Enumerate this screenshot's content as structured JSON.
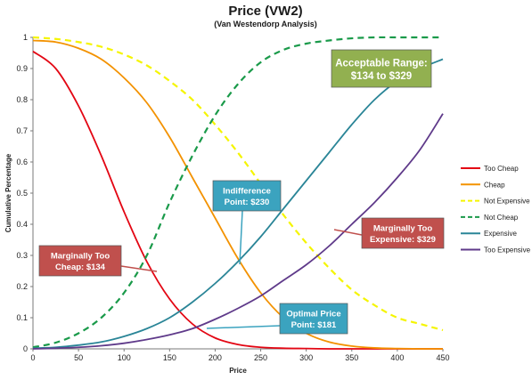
{
  "chart_data": {
    "type": "line",
    "title": "Price (VW2)",
    "subtitle": "(Van Westendorp Analysis)",
    "xlabel": "Price",
    "ylabel": "Cumulative Percentage",
    "xlim": [
      0,
      450
    ],
    "ylim": [
      0,
      1
    ],
    "x_ticks": [
      "0",
      "50",
      "100",
      "150",
      "200",
      "250",
      "300",
      "350",
      "400",
      "450"
    ],
    "y_ticks": [
      "0",
      "0.1",
      "0.2",
      "0.3",
      "0.4",
      "0.5",
      "0.6",
      "0.7",
      "0.8",
      "0.9",
      "1"
    ],
    "grid": false,
    "legend_position": "right",
    "x": [
      0,
      25,
      50,
      75,
      100,
      125,
      150,
      175,
      200,
      225,
      250,
      275,
      300,
      325,
      350,
      375,
      400,
      425,
      450
    ],
    "series": [
      {
        "name": "Too Cheap",
        "color": "#e30613",
        "style": "solid",
        "values": [
          0.955,
          0.9,
          0.78,
          0.62,
          0.44,
          0.28,
          0.16,
          0.08,
          0.035,
          0.014,
          0.005,
          0.002,
          0.001,
          0,
          0,
          0,
          0,
          0,
          0
        ]
      },
      {
        "name": "Cheap",
        "color": "#f39200",
        "style": "solid",
        "values": [
          0.99,
          0.985,
          0.965,
          0.93,
          0.87,
          0.79,
          0.68,
          0.55,
          0.42,
          0.29,
          0.18,
          0.1,
          0.05,
          0.022,
          0.009,
          0.003,
          0.001,
          0,
          0
        ]
      },
      {
        "name": "Not Expensive",
        "color": "#f5f500",
        "style": "dashed",
        "values": [
          1.0,
          0.995,
          0.985,
          0.97,
          0.945,
          0.91,
          0.86,
          0.8,
          0.72,
          0.63,
          0.53,
          0.43,
          0.34,
          0.26,
          0.19,
          0.14,
          0.1,
          0.08,
          0.06
        ]
      },
      {
        "name": "Not Cheap",
        "color": "#1a9a4a",
        "style": "dashed",
        "values": [
          0.005,
          0.02,
          0.05,
          0.1,
          0.18,
          0.3,
          0.47,
          0.62,
          0.75,
          0.85,
          0.92,
          0.96,
          0.98,
          0.99,
          0.997,
          1.0,
          1.0,
          1.0,
          1.0
        ]
      },
      {
        "name": "Expensive",
        "color": "#2a8597",
        "style": "solid",
        "values": [
          0.002,
          0.005,
          0.012,
          0.022,
          0.04,
          0.065,
          0.1,
          0.15,
          0.21,
          0.28,
          0.36,
          0.45,
          0.54,
          0.63,
          0.72,
          0.8,
          0.86,
          0.9,
          0.93
        ]
      },
      {
        "name": "Too Expensive",
        "color": "#5f3a8a",
        "style": "solid",
        "values": [
          0.0,
          0.002,
          0.005,
          0.01,
          0.018,
          0.03,
          0.045,
          0.065,
          0.095,
          0.13,
          0.17,
          0.22,
          0.27,
          0.33,
          0.4,
          0.47,
          0.55,
          0.64,
          0.755
        ]
      }
    ],
    "annotations": [
      {
        "line1": "Acceptable Range:",
        "line2": "$134 to $329",
        "color": "#92b050",
        "x_value": 329,
        "y_value": 0.82
      },
      {
        "line1": "Indifference",
        "line2": "Point: $230",
        "color": "#3ba3bf",
        "x_value": 230,
        "y_value": 0.27
      },
      {
        "line1": "Marginally Too",
        "line2": "Expensive: $329",
        "color": "#c0504d",
        "x_value": 329,
        "y_value": 0.38
      },
      {
        "line1": "Marginally Too",
        "line2": "Cheap: $134",
        "color": "#c0504d",
        "x_value": 134,
        "y_value": 0.255
      },
      {
        "line1": "Optimal Price",
        "line2": "Point: $181",
        "color": "#3ba3bf",
        "x_value": 181,
        "y_value": 0.07
      }
    ]
  }
}
